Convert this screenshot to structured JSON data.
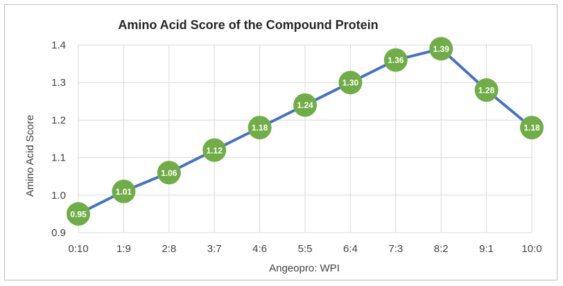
{
  "chart_data": {
    "type": "line",
    "title": "Amino Acid Score of the Compound Protein",
    "xlabel": "Angeopro: WPI",
    "ylabel": "Amino Acid Score",
    "categories": [
      "0:10",
      "1:9",
      "2:8",
      "3:7",
      "4:6",
      "5:5",
      "6:4",
      "7:3",
      "8:2",
      "9:1",
      "10:0"
    ],
    "series": [
      {
        "values": [
          0.95,
          1.01,
          1.06,
          1.12,
          1.18,
          1.24,
          1.3,
          1.36,
          1.39,
          1.28,
          1.18
        ],
        "data_labels": [
          "0.95",
          "1.01",
          "1.06",
          "1.12",
          "1.18",
          "1.24",
          "1.30",
          "1.36",
          "1.39",
          "1.28",
          "1.18"
        ],
        "line_color": "#4472c4",
        "marker_color": "#70ad47"
      }
    ],
    "ylim": [
      0.9,
      1.4
    ],
    "yticks": [
      "0.9",
      "1.0",
      "1.1",
      "1.2",
      "1.3",
      "1.4"
    ],
    "grid": true,
    "legend": "none"
  }
}
